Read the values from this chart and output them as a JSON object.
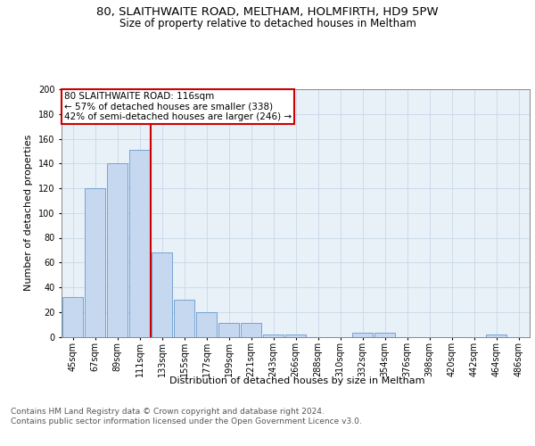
{
  "title": "80, SLAITHWAITE ROAD, MELTHAM, HOLMFIRTH, HD9 5PW",
  "subtitle": "Size of property relative to detached houses in Meltham",
  "xlabel": "Distribution of detached houses by size in Meltham",
  "ylabel": "Number of detached properties",
  "bin_labels": [
    "45sqm",
    "67sqm",
    "89sqm",
    "111sqm",
    "133sqm",
    "155sqm",
    "177sqm",
    "199sqm",
    "221sqm",
    "243sqm",
    "266sqm",
    "288sqm",
    "310sqm",
    "332sqm",
    "354sqm",
    "376sqm",
    "398sqm",
    "420sqm",
    "442sqm",
    "464sqm",
    "486sqm"
  ],
  "bar_values": [
    32,
    120,
    140,
    151,
    68,
    30,
    20,
    11,
    11,
    2,
    2,
    0,
    0,
    3,
    3,
    0,
    0,
    0,
    0,
    2,
    0
  ],
  "bar_color": "#c5d8ef",
  "bar_edge_color": "#6699cc",
  "grid_color": "#c8d8e8",
  "bg_color": "#e8f0f8",
  "vline_x": 3.5,
  "vline_color": "#cc0000",
  "annotation_text": "80 SLAITHWAITE ROAD: 116sqm\n← 57% of detached houses are smaller (338)\n42% of semi-detached houses are larger (246) →",
  "annotation_box_color": "#cc0000",
  "ylim": [
    0,
    200
  ],
  "yticks": [
    0,
    20,
    40,
    60,
    80,
    100,
    120,
    140,
    160,
    180,
    200
  ],
  "footer": "Contains HM Land Registry data © Crown copyright and database right 2024.\nContains public sector information licensed under the Open Government Licence v3.0.",
  "title_fontsize": 9.5,
  "subtitle_fontsize": 8.5,
  "axis_label_fontsize": 8,
  "tick_fontsize": 7,
  "annotation_fontsize": 7.5,
  "footer_fontsize": 6.5
}
